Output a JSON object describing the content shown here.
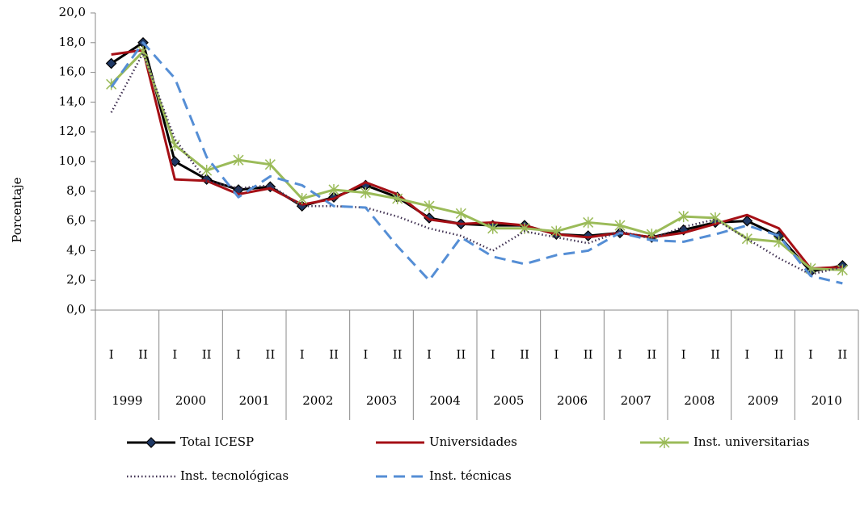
{
  "chart_data": {
    "type": "line",
    "y_label": "Porcentaje",
    "categories": [
      "I",
      "II",
      "I",
      "II",
      "I",
      "II",
      "I",
      "II",
      "I",
      "II",
      "I",
      "II",
      "I",
      "II",
      "I",
      "II",
      "I",
      "II",
      "I",
      "II",
      "I",
      "II",
      "I",
      "II"
    ],
    "category_groups": [
      "1999",
      "2000",
      "2001",
      "2002",
      "2003",
      "2004",
      "2005",
      "2006",
      "2007",
      "2008",
      "2009",
      "2010"
    ],
    "ylim": [
      0,
      20
    ],
    "yticks": [
      {
        "value": 0,
        "label": "0,0"
      },
      {
        "value": 2,
        "label": "2,0"
      },
      {
        "value": 4,
        "label": "4,0"
      },
      {
        "value": 6,
        "label": "6,0"
      },
      {
        "value": 8,
        "label": "8,0"
      },
      {
        "value": 10,
        "label": "10,0"
      },
      {
        "value": 12,
        "label": "12,0"
      },
      {
        "value": 14,
        "label": "14,0"
      },
      {
        "value": 16,
        "label": "16,0"
      },
      {
        "value": 18,
        "label": "18,0"
      },
      {
        "value": 20,
        "label": "20,0"
      }
    ],
    "series": [
      {
        "name": "Total ICESP",
        "color": "#000000",
        "style": "solid",
        "marker": "diamond",
        "values": [
          16.6,
          18.0,
          10.0,
          8.8,
          8.1,
          8.3,
          7.0,
          7.6,
          8.4,
          7.6,
          6.2,
          5.8,
          5.7,
          5.7,
          5.1,
          5.0,
          5.2,
          4.9,
          5.4,
          5.9,
          6.0,
          5.0,
          2.6,
          3.0
        ]
      },
      {
        "name": "Universidades",
        "color": "#a50f15",
        "style": "solid",
        "marker": "none",
        "values": [
          17.2,
          17.5,
          8.8,
          8.7,
          7.8,
          8.2,
          7.1,
          7.5,
          8.6,
          7.8,
          6.1,
          5.8,
          5.9,
          5.7,
          5.1,
          4.9,
          5.2,
          4.9,
          5.2,
          5.8,
          6.4,
          5.5,
          2.8,
          2.9
        ]
      },
      {
        "name": "Inst. universitarias",
        "color": "#9bbb59",
        "style": "solid",
        "marker": "asterisk",
        "values": [
          15.2,
          17.4,
          11.1,
          9.4,
          10.1,
          9.8,
          7.5,
          8.1,
          7.9,
          7.5,
          7.0,
          6.5,
          5.5,
          5.5,
          5.3,
          5.9,
          5.7,
          5.1,
          6.3,
          6.2,
          4.8,
          4.6,
          2.8,
          2.7
        ]
      },
      {
        "name": "Inst. tecnológicas",
        "color": "#403152",
        "style": "dotted",
        "marker": "none",
        "values": [
          13.3,
          17.3,
          11.5,
          8.7,
          8.2,
          8.4,
          7.0,
          7.0,
          6.9,
          6.3,
          5.5,
          5.0,
          4.0,
          5.3,
          4.9,
          4.5,
          5.3,
          4.8,
          5.6,
          6.1,
          4.8,
          3.5,
          2.4,
          2.9
        ]
      },
      {
        "name": "Inst. técnicas",
        "color": "#558ed5",
        "style": "dashed",
        "marker": "none",
        "values": [
          15.0,
          18.0,
          15.6,
          10.3,
          7.6,
          9.0,
          8.4,
          7.0,
          6.9,
          4.3,
          2.0,
          4.9,
          3.6,
          3.1,
          3.7,
          4.0,
          5.2,
          4.7,
          4.6,
          5.1,
          5.7,
          5.0,
          2.3,
          1.8
        ]
      }
    ]
  }
}
